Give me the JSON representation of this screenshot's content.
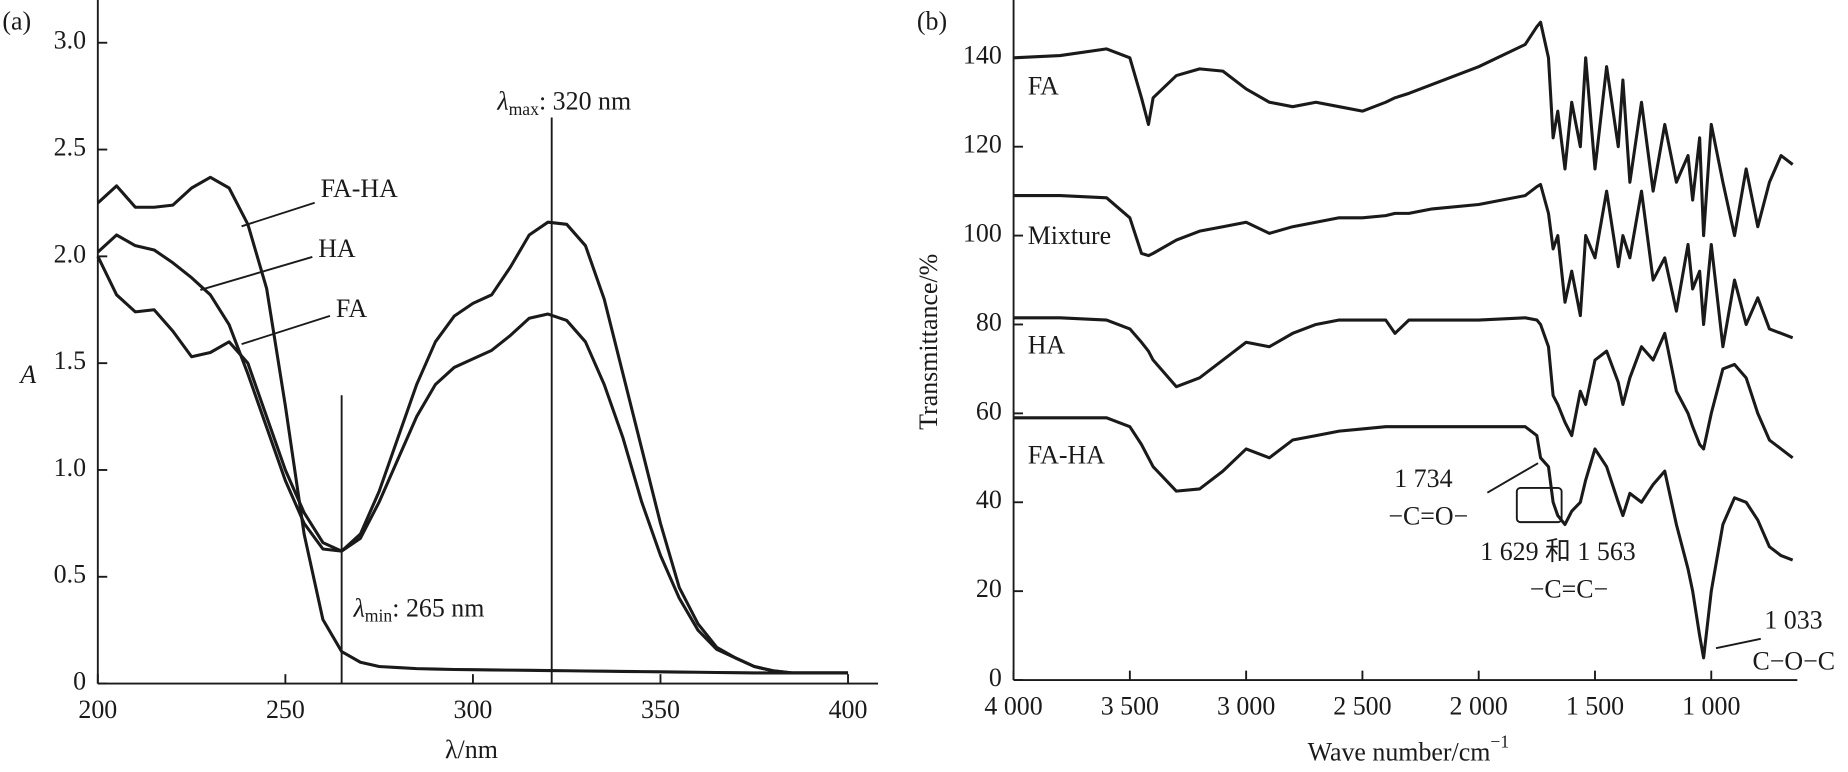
{
  "chart_data": [
    {
      "type": "line",
      "panel": "(a)",
      "xlabel": "λ/nm",
      "ylabel": "A",
      "xlim": [
        200,
        408
      ],
      "ylim": [
        0,
        3.2
      ],
      "xticks": [
        200,
        250,
        300,
        350,
        400
      ],
      "yticks": [
        0,
        0.5,
        {
          "value": 1,
          "label": "1.0"
        },
        1.5,
        {
          "value": 2,
          "label": "2.0"
        },
        2.5,
        {
          "value": 3,
          "label": "3.0"
        }
      ],
      "x": [
        200,
        205,
        210,
        215,
        220,
        225,
        230,
        235,
        240,
        245,
        250,
        255,
        260,
        265,
        270,
        275,
        280,
        285,
        290,
        295,
        300,
        305,
        310,
        315,
        320,
        325,
        330,
        335,
        340,
        345,
        350,
        355,
        360,
        365,
        370,
        375,
        380,
        385,
        390,
        395,
        400
      ],
      "series": [
        {
          "name": "FA-HA",
          "color": "#1a1a1a",
          "values": [
            2.25,
            2.33,
            2.23,
            2.23,
            2.24,
            2.32,
            2.37,
            2.32,
            2.15,
            1.85,
            1.3,
            0.7,
            0.3,
            0.15,
            0.1,
            0.08,
            0.075,
            0.07,
            0.068,
            0.066,
            0.065,
            0.064,
            0.063,
            0.062,
            0.061,
            0.06,
            0.059,
            0.058,
            0.057,
            0.056,
            0.055,
            0.054,
            0.053,
            0.052,
            0.051,
            0.05,
            0.05,
            0.05,
            0.05,
            0.05,
            0.05
          ]
        },
        {
          "name": "HA",
          "color": "#1a1a1a",
          "values": [
            2.02,
            2.1,
            2.05,
            2.03,
            1.97,
            1.9,
            1.82,
            1.68,
            1.45,
            1.2,
            0.95,
            0.75,
            0.63,
            0.62,
            0.7,
            0.9,
            1.15,
            1.4,
            1.6,
            1.72,
            1.78,
            1.82,
            1.95,
            2.1,
            2.16,
            2.15,
            2.05,
            1.8,
            1.45,
            1.1,
            0.75,
            0.45,
            0.28,
            0.17,
            0.12,
            0.08,
            0.06,
            0.05,
            0.05,
            0.05,
            0.05
          ]
        },
        {
          "name": "FA",
          "color": "#1a1a1a",
          "values": [
            2.0,
            1.82,
            1.74,
            1.75,
            1.65,
            1.53,
            1.55,
            1.6,
            1.5,
            1.25,
            1.0,
            0.8,
            0.66,
            0.62,
            0.68,
            0.85,
            1.05,
            1.25,
            1.4,
            1.48,
            1.52,
            1.56,
            1.63,
            1.71,
            1.73,
            1.7,
            1.6,
            1.4,
            1.15,
            0.85,
            0.6,
            0.4,
            0.25,
            0.16,
            0.12,
            0.08,
            0.06,
            0.05,
            0.05,
            0.05,
            0.05
          ]
        }
      ],
      "vlines": [
        {
          "x": 265,
          "ymax": 1.35,
          "symbol": "λ",
          "sub": "min",
          "text": ": 265 nm"
        },
        {
          "x": 321,
          "ymax": 2.65,
          "symbol": "λ",
          "sub": "max",
          "text": ": 320 nm"
        }
      ]
    },
    {
      "type": "line",
      "panel": "(b)",
      "xlabel": {
        "text": "Wave number/cm",
        "sup": "−1"
      },
      "ylabel": "Transmittance/%",
      "xlim": [
        4000,
        630
      ],
      "ylim": [
        0,
        153
      ],
      "xticks": [
        {
          "value": 4000,
          "label": "4 000"
        },
        {
          "value": 3500,
          "label": "3 500"
        },
        {
          "value": 3000,
          "label": "3 000"
        },
        {
          "value": 2500,
          "label": "2 500"
        },
        {
          "value": 2000,
          "label": "2 000"
        },
        {
          "value": 1500,
          "label": "1 500"
        },
        {
          "value": 1000,
          "label": "1 000"
        }
      ],
      "yticks": [
        0,
        20,
        40,
        60,
        80,
        100,
        120,
        140
      ],
      "x": [
        4000,
        3800,
        3600,
        3500,
        3450,
        3420,
        3400,
        3300,
        3200,
        3100,
        3000,
        2900,
        2800,
        2700,
        2600,
        2500,
        2400,
        2360,
        2300,
        2200,
        2000,
        1800,
        1750,
        1734,
        1700,
        1680,
        1660,
        1629,
        1600,
        1563,
        1540,
        1500,
        1450,
        1400,
        1380,
        1350,
        1300,
        1250,
        1200,
        1150,
        1100,
        1080,
        1050,
        1033,
        1000,
        950,
        900,
        850,
        800,
        750,
        700,
        650
      ],
      "series": [
        {
          "name": "FA",
          "color": "#1a1a1a",
          "values": [
            140,
            140.5,
            142,
            140,
            131,
            125,
            131,
            136,
            137.5,
            137,
            133,
            130,
            129,
            130,
            129,
            128,
            130,
            131,
            132,
            134,
            138,
            143,
            147,
            148,
            140,
            122,
            128,
            115,
            130,
            120,
            140,
            115,
            138,
            120,
            135,
            112,
            130,
            110,
            125,
            112,
            118,
            108,
            122,
            100,
            125,
            112,
            100,
            115,
            102,
            112,
            118,
            116
          ]
        },
        {
          "name": "Mixture",
          "color": "#1a1a1a",
          "values": [
            109,
            109,
            108.5,
            104,
            96,
            95.5,
            96,
            99,
            101,
            102,
            103,
            100.5,
            102,
            103,
            104,
            104,
            104.5,
            105,
            105,
            106,
            107,
            109,
            111,
            111.5,
            105,
            97,
            100,
            85,
            92,
            82,
            100,
            95,
            110,
            93,
            100,
            95,
            110,
            90,
            95,
            83,
            98,
            88,
            92,
            80,
            98,
            75,
            90,
            80,
            86,
            79,
            78,
            77
          ]
        },
        {
          "name": "HA",
          "color": "#1a1a1a",
          "values": [
            81.5,
            81.5,
            81,
            79,
            76,
            74,
            72,
            66,
            68,
            72,
            76,
            75,
            78,
            80,
            81,
            81,
            81,
            78,
            81,
            81,
            81,
            81.5,
            81,
            80,
            75,
            64,
            62,
            58,
            55,
            65,
            62,
            72,
            74,
            67,
            62,
            68,
            75,
            72,
            78,
            65,
            60,
            57,
            53,
            52,
            60,
            70,
            71,
            68,
            60,
            54,
            52,
            50
          ]
        },
        {
          "name": "FA-HA",
          "color": "#1a1a1a",
          "values": [
            59,
            59,
            59,
            57,
            53,
            50,
            48,
            42.5,
            43,
            47,
            52,
            50,
            54,
            55,
            56,
            56.5,
            57,
            57,
            57,
            57,
            57,
            57,
            55,
            50,
            48,
            40,
            37,
            35,
            38,
            40,
            45,
            52,
            48,
            40,
            37,
            42,
            40,
            44,
            47,
            35,
            25,
            20,
            10,
            5,
            20,
            35,
            41,
            40,
            36,
            30,
            28,
            27
          ]
        }
      ],
      "annotations": [
        {
          "number": "1 734",
          "group": "−C=O−"
        },
        {
          "number": "1 629 和 1 563",
          "group": "−C=C−"
        },
        {
          "number": "1 033",
          "group": "C−O−C"
        }
      ]
    }
  ]
}
